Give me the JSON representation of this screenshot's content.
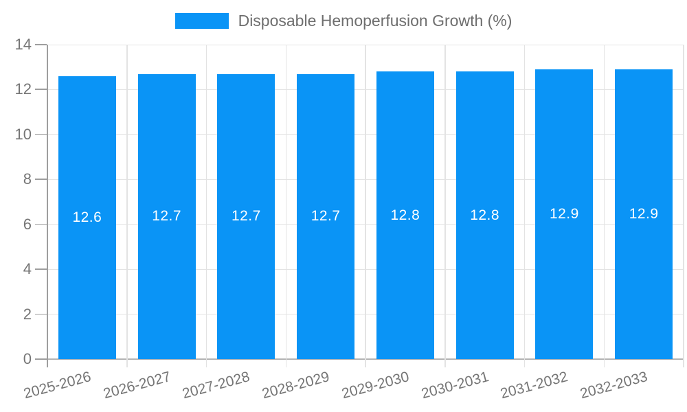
{
  "chart_data": {
    "type": "bar",
    "title": "",
    "legend": "Disposable Hemoperfusion Growth (%)",
    "legend_position": "top-center",
    "categories": [
      "2025-2026",
      "2026-2027",
      "2027-2028",
      "2028-2029",
      "2029-2030",
      "2030-2031",
      "2031-2032",
      "2032-2033"
    ],
    "values": [
      12.6,
      12.7,
      12.7,
      12.7,
      12.8,
      12.8,
      12.9,
      12.9
    ],
    "value_labels": [
      "12.6",
      "12.7",
      "12.7",
      "12.7",
      "12.8",
      "12.8",
      "12.9",
      "12.9"
    ],
    "value_label_position": "inside-middle",
    "xlabel": "",
    "ylabel": "",
    "ylim": [
      0,
      14
    ],
    "yticks": [
      "0",
      "2",
      "4",
      "6",
      "8",
      "10",
      "12",
      "14"
    ],
    "grid": true,
    "x_label_rotation_deg": -15,
    "colors": {
      "bar": "#0a94f6",
      "bar_value_text": "#ffffff",
      "grid_line": "#e3e3e3",
      "axis_line": "#9e9e9e",
      "baseline": "#b3b3b3",
      "tick_label_text": "#757575",
      "legend_text": "#6e6e6e"
    }
  }
}
